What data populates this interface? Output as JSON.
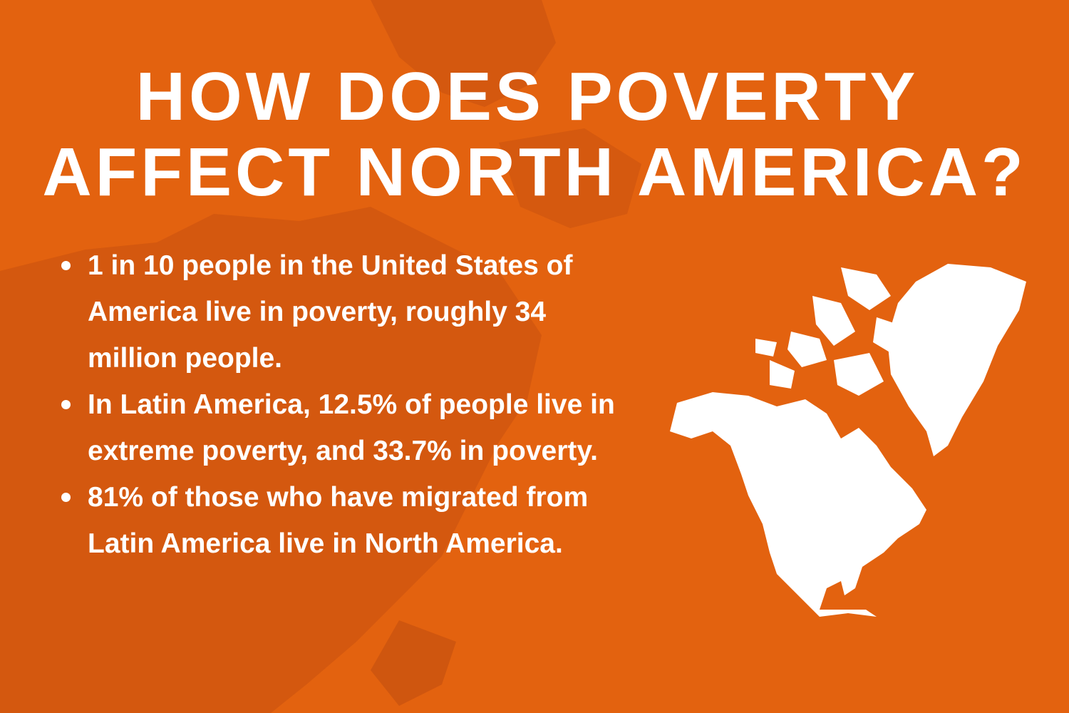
{
  "title": {
    "line1": "HOW DOES POVERTY",
    "line2": "AFFECT NORTH AMERICA?"
  },
  "bullets": [
    {
      "text": "1 in 10 people in the United States of America live in poverty, roughly 34 million people."
    },
    {
      "text": "In Latin America, 12.5% of people live in extreme poverty, and 33.7% in poverty."
    },
    {
      "text": "81% of those who have migrated from Latin America live in North America."
    }
  ],
  "colors": {
    "background": "#e3620f",
    "background_map": "#cf560f",
    "text": "#ffffff"
  },
  "icons": {
    "map": "north-america-map-icon",
    "bullet": "bullet-dot"
  }
}
